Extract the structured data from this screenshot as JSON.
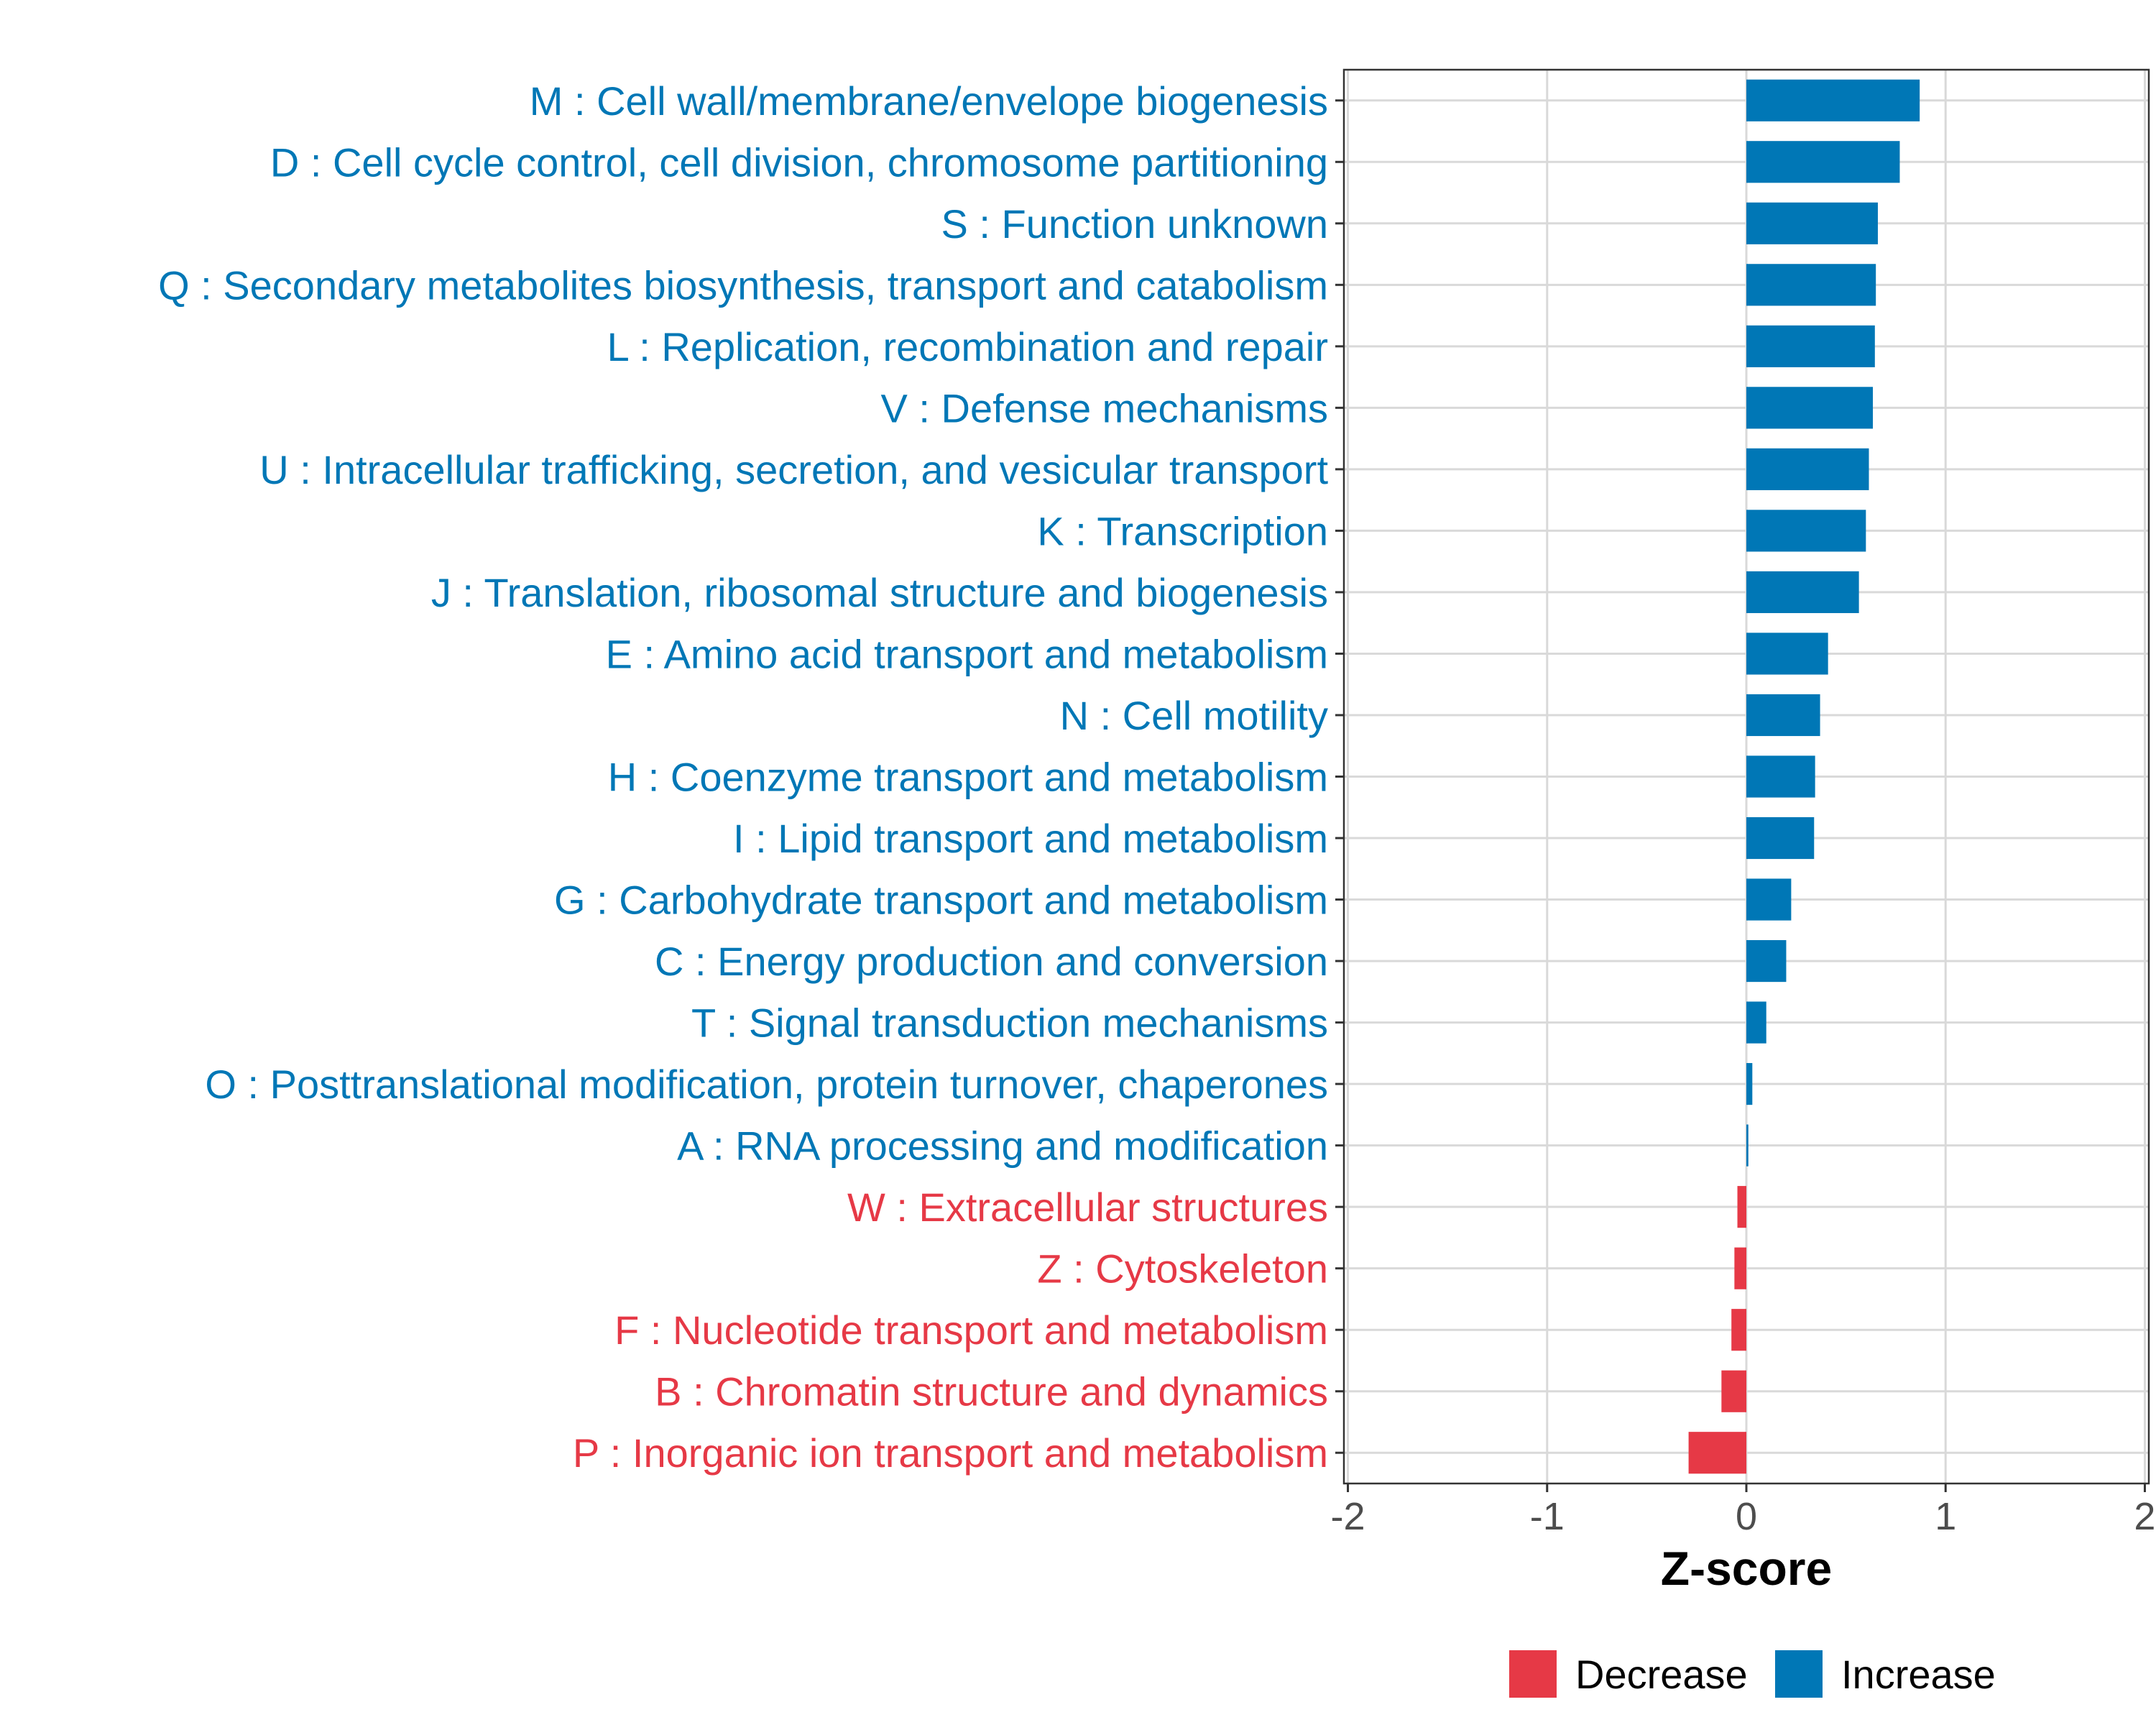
{
  "chart_data": {
    "type": "bar",
    "orientation": "horizontal",
    "xlabel": "Z-score",
    "xlim": [
      -2.02,
      2.02
    ],
    "xticks": [
      "-2",
      "-1",
      "0",
      "1",
      "2"
    ],
    "grid": true,
    "legend_position": "bottom",
    "colors": {
      "Decrease": "#e63946",
      "Increase": "#0077b6"
    },
    "categories": [
      "M : Cell wall/membrane/envelope biogenesis",
      "D : Cell cycle control, cell division, chromosome partitioning",
      "S : Function unknown",
      "Q : Secondary metabolites biosynthesis, transport and catabolism",
      "L : Replication, recombination and repair",
      "V : Defense mechanisms",
      "U : Intracellular trafficking, secretion, and vesicular transport",
      "K : Transcription",
      "J : Translation, ribosomal structure and biogenesis",
      "E : Amino acid transport and metabolism",
      "N : Cell motility",
      "H : Coenzyme transport and metabolism",
      "I : Lipid transport and metabolism",
      "G : Carbohydrate transport and metabolism",
      "C : Energy production and conversion",
      "T : Signal transduction mechanisms",
      "O : Posttranslational modification, protein turnover, chaperones",
      "A : RNA processing and modification",
      "W : Extracellular structures",
      "Z : Cytoskeleton",
      "F : Nucleotide transport and metabolism",
      "B : Chromatin structure and dynamics",
      "P : Inorganic ion transport and metabolism"
    ],
    "values": [
      0.87,
      0.77,
      0.66,
      0.65,
      0.645,
      0.635,
      0.615,
      0.6,
      0.565,
      0.41,
      0.37,
      0.345,
      0.34,
      0.225,
      0.2,
      0.1,
      0.03,
      0.01,
      -0.045,
      -0.06,
      -0.075,
      -0.125,
      -0.29
    ],
    "groups": [
      "Increase",
      "Increase",
      "Increase",
      "Increase",
      "Increase",
      "Increase",
      "Increase",
      "Increase",
      "Increase",
      "Increase",
      "Increase",
      "Increase",
      "Increase",
      "Increase",
      "Increase",
      "Increase",
      "Increase",
      "Increase",
      "Decrease",
      "Decrease",
      "Decrease",
      "Decrease",
      "Decrease"
    ],
    "legend": [
      "Decrease",
      "Increase"
    ]
  }
}
